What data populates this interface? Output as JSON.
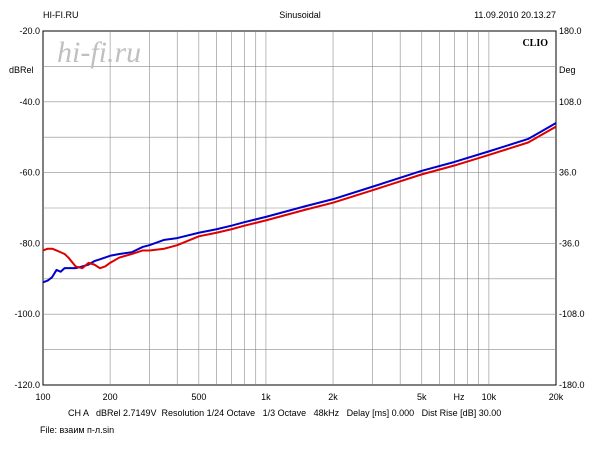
{
  "header": {
    "left": "HI-FI.RU",
    "center": "Sinusoidal",
    "right": "11.09.2010 20.13.27"
  },
  "watermark": "hi-fi.ru",
  "brand": "CLIO",
  "footer": {
    "info": "CH A   dBRel 2.7149V  Resolution 1/24 Octave   1/3 Octave   48kHz   Delay [ms] 0.000   Dist Rise [dB] 30.00",
    "file": "File: взаим п-л.sin"
  },
  "chart_data": {
    "type": "line",
    "x_scale": "log",
    "xlim": [
      100,
      20000
    ],
    "ylim": [
      -120,
      -20
    ],
    "y2lim": [
      -180,
      180
    ],
    "ylabel": "dBRel",
    "y2label": "Deg",
    "x_unit_label": "Hz",
    "grid": true,
    "x_tick_labels": [
      {
        "value": 100,
        "label": "100"
      },
      {
        "value": 200,
        "label": "200"
      },
      {
        "value": 500,
        "label": "500"
      },
      {
        "value": 1000,
        "label": "1k"
      },
      {
        "value": 2000,
        "label": "2k"
      },
      {
        "value": 5000,
        "label": "5k"
      },
      {
        "value": 10000,
        "label": "10k"
      },
      {
        "value": 20000,
        "label": "20k"
      }
    ],
    "y_tick_labels": [
      "-20.0",
      "-40.0",
      "-60.0",
      "-80.0",
      "-100.0",
      "-120.0"
    ],
    "y2_tick_labels": [
      "180.0",
      "108.0",
      "36.0",
      "-36.0",
      "-108.0",
      "-180.0"
    ],
    "series": [
      {
        "color": "#0000cc",
        "points": [
          [
            100,
            -91
          ],
          [
            105,
            -90.5
          ],
          [
            110,
            -89.5
          ],
          [
            115,
            -87.5
          ],
          [
            120,
            -88
          ],
          [
            125,
            -87
          ],
          [
            130,
            -87
          ],
          [
            140,
            -87
          ],
          [
            150,
            -86.5
          ],
          [
            160,
            -86
          ],
          [
            170,
            -85
          ],
          [
            180,
            -84.5
          ],
          [
            200,
            -83.5
          ],
          [
            220,
            -83
          ],
          [
            250,
            -82.5
          ],
          [
            280,
            -81
          ],
          [
            300,
            -80.5
          ],
          [
            350,
            -79
          ],
          [
            400,
            -78.5
          ],
          [
            500,
            -77
          ],
          [
            600,
            -76
          ],
          [
            700,
            -75
          ],
          [
            800,
            -74
          ],
          [
            1000,
            -72.5
          ],
          [
            1500,
            -69.5
          ],
          [
            2000,
            -67.5
          ],
          [
            3000,
            -64
          ],
          [
            5000,
            -59.5
          ],
          [
            7000,
            -57
          ],
          [
            10000,
            -54
          ],
          [
            15000,
            -50.5
          ],
          [
            20000,
            -46
          ]
        ]
      },
      {
        "color": "#dd0000",
        "points": [
          [
            100,
            -82
          ],
          [
            105,
            -81.5
          ],
          [
            110,
            -81.5
          ],
          [
            115,
            -82
          ],
          [
            120,
            -82.5
          ],
          [
            125,
            -83
          ],
          [
            130,
            -84
          ],
          [
            140,
            -86.5
          ],
          [
            150,
            -87
          ],
          [
            160,
            -85.5
          ],
          [
            170,
            -86
          ],
          [
            180,
            -87
          ],
          [
            190,
            -86.5
          ],
          [
            200,
            -85.5
          ],
          [
            220,
            -84
          ],
          [
            250,
            -83
          ],
          [
            280,
            -82
          ],
          [
            300,
            -82
          ],
          [
            350,
            -81.5
          ],
          [
            400,
            -80.5
          ],
          [
            500,
            -78
          ],
          [
            600,
            -77
          ],
          [
            700,
            -76
          ],
          [
            800,
            -75
          ],
          [
            1000,
            -73.5
          ],
          [
            1500,
            -70.5
          ],
          [
            2000,
            -68.5
          ],
          [
            3000,
            -65
          ],
          [
            5000,
            -60.5
          ],
          [
            7000,
            -58
          ],
          [
            10000,
            -55
          ],
          [
            15000,
            -51.5
          ],
          [
            20000,
            -47
          ]
        ]
      }
    ]
  }
}
